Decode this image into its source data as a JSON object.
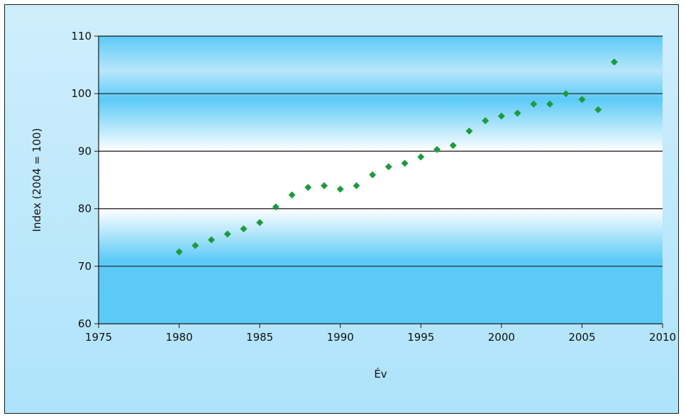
{
  "chart_data": {
    "type": "scatter",
    "title": "",
    "xlabel": "Év",
    "ylabel": "Index  (2004 = 100)",
    "xlim": [
      1975,
      2010
    ],
    "ylim": [
      60,
      110
    ],
    "xticks": [
      1975,
      1980,
      1985,
      1990,
      1995,
      2000,
      2005,
      2010
    ],
    "yticks": [
      60,
      70,
      80,
      90,
      100,
      110
    ],
    "grid": true,
    "legend": "none",
    "marker_color": "#1e9a3e",
    "x": [
      1980,
      1981,
      1982,
      1983,
      1984,
      1985,
      1986,
      1987,
      1988,
      1989,
      1990,
      1991,
      1992,
      1993,
      1994,
      1995,
      1996,
      1997,
      1998,
      1999,
      2000,
      2001,
      2002,
      2003,
      2004,
      2005,
      2006,
      2007
    ],
    "y": [
      72.5,
      73.6,
      74.6,
      75.6,
      76.5,
      77.6,
      80.3,
      82.4,
      83.7,
      84.0,
      83.4,
      84.0,
      85.9,
      87.3,
      87.9,
      89.0,
      90.3,
      91.0,
      93.5,
      95.3,
      96.1,
      96.6,
      98.2,
      98.2,
      100.0,
      99.0,
      97.2,
      105.5
    ]
  }
}
